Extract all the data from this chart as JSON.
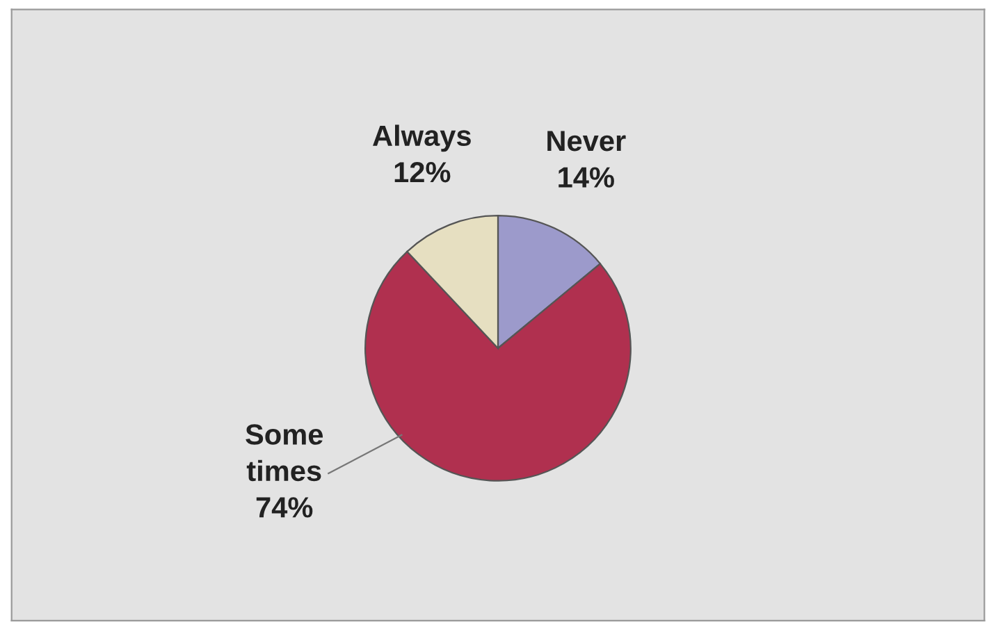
{
  "chart_data": {
    "type": "pie",
    "categories": [
      "Never",
      "Some times",
      "Always"
    ],
    "values": [
      14,
      74,
      12
    ],
    "value_labels": [
      "14%",
      "74%",
      "12%"
    ],
    "colors": [
      "#9c9acb",
      "#b0304f",
      "#e6dfc1"
    ]
  }
}
